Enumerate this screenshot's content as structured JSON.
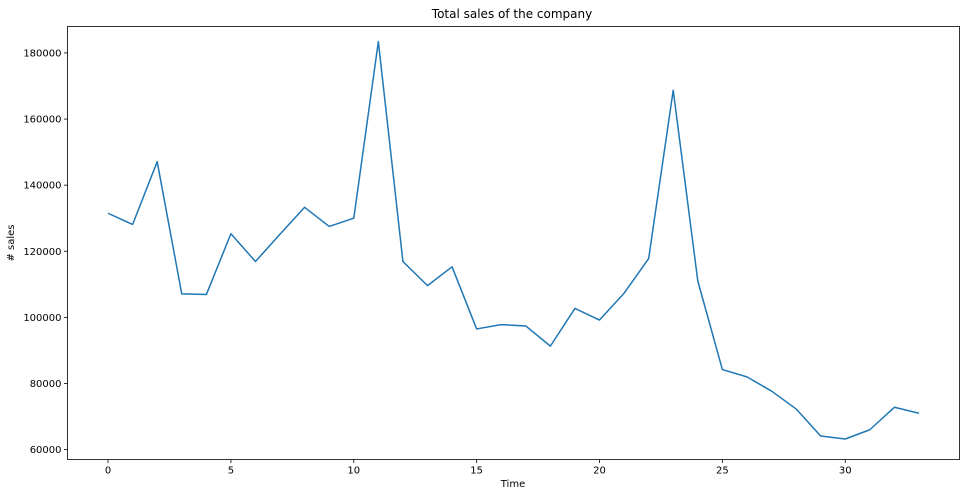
{
  "chart_data": {
    "type": "line",
    "title": "Total sales of the company",
    "xlabel": "Time",
    "ylabel": "# sales",
    "xlim": [
      -1.65,
      34.65
    ],
    "ylim": [
      57000,
      188000
    ],
    "xticks": [
      0,
      5,
      10,
      15,
      20,
      25,
      30
    ],
    "yticks": [
      60000,
      80000,
      100000,
      120000,
      140000,
      160000,
      180000
    ],
    "grid": false,
    "legend": "none",
    "series": [
      {
        "color": "#1f77b4",
        "x": [
          0,
          1,
          2,
          3,
          4,
          5,
          6,
          7,
          8,
          9,
          10,
          11,
          12,
          13,
          14,
          15,
          16,
          17,
          18,
          19,
          20,
          21,
          22,
          23,
          24,
          25,
          26,
          27,
          28,
          29,
          30,
          31,
          32,
          33
        ],
        "values": [
          131500,
          128100,
          147100,
          107100,
          106900,
          125300,
          116900,
          125200,
          133300,
          127500,
          130000,
          183400,
          116900,
          109600,
          115300,
          96500,
          97800,
          97400,
          91300,
          102700,
          99200,
          107300,
          117800,
          168700,
          111000,
          84200,
          82000,
          77700,
          72300,
          64100,
          63200,
          66000,
          72800,
          71000
        ]
      }
    ]
  }
}
